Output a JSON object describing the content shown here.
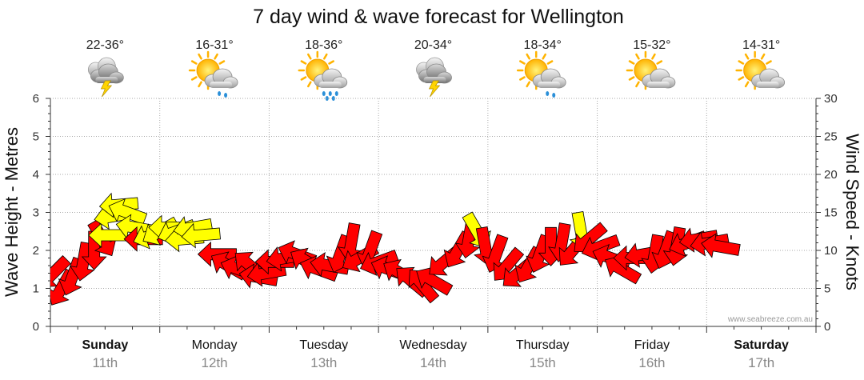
{
  "chart_data": {
    "type": "line",
    "title": "7 day wind & wave forecast for Wellington",
    "ylabel_left": "Wave Height - Metres",
    "ylabel_right": "Wind Speed - Knots",
    "ylim_left": [
      0,
      6
    ],
    "ylim_right": [
      0,
      30
    ],
    "yticks_left": [
      "0",
      "1",
      "2",
      "3",
      "4",
      "5",
      "6"
    ],
    "yticks_right": [
      "0",
      "5",
      "10",
      "15",
      "20",
      "25",
      "30"
    ],
    "grid": true,
    "credit": "www.seabreeze.com.au",
    "days": [
      {
        "day": "Sunday",
        "date": "11th",
        "bold": true,
        "temp": "22-36°",
        "icon": "cloud-storm-icon"
      },
      {
        "day": "Monday",
        "date": "12th",
        "bold": false,
        "temp": "16-31°",
        "icon": "sun-cloud-drizzle-icon"
      },
      {
        "day": "Tuesday",
        "date": "13th",
        "bold": false,
        "temp": "18-36°",
        "icon": "sun-cloud-rain-icon"
      },
      {
        "day": "Wednesday",
        "date": "14th",
        "bold": false,
        "temp": "20-34°",
        "icon": "cloud-storm-icon"
      },
      {
        "day": "Thursday",
        "date": "15th",
        "bold": false,
        "temp": "18-34°",
        "icon": "sun-cloud-drizzle-icon"
      },
      {
        "day": "Friday",
        "date": "16th",
        "bold": false,
        "temp": "15-32°",
        "icon": "sun-cloud-icon"
      },
      {
        "day": "Saturday",
        "date": "17th",
        "bold": true,
        "temp": "14-31°",
        "icon": "sun-cloud-icon"
      }
    ],
    "colors": {
      "high_wind": "#ff0000",
      "low_wind": "#ffff00",
      "outline": "#000000"
    },
    "series": [
      {
        "name": "Wind Speed - Knots",
        "points": [
          {
            "x": 0.05,
            "y": 7.0,
            "dir": 135,
            "c": "r"
          },
          {
            "x": 0.2,
            "y": 5.0,
            "dir": 120,
            "c": "r"
          },
          {
            "x": 0.4,
            "y": 6.5,
            "dir": 110,
            "c": "r"
          },
          {
            "x": 0.6,
            "y": 8.5,
            "dir": 100,
            "c": "r"
          },
          {
            "x": 0.8,
            "y": 10.0,
            "dir": 90,
            "c": "r"
          },
          {
            "x": 0.95,
            "y": 11.5,
            "dir": 60,
            "c": "r"
          },
          {
            "x": 1.05,
            "y": 12.0,
            "dir": 180,
            "c": "y"
          },
          {
            "x": 1.15,
            "y": 14.5,
            "dir": 170,
            "c": "y"
          },
          {
            "x": 1.25,
            "y": 16.0,
            "dir": 175,
            "c": "y"
          },
          {
            "x": 1.4,
            "y": 15.0,
            "dir": 200,
            "c": "y"
          },
          {
            "x": 1.55,
            "y": 13.0,
            "dir": 190,
            "c": "y"
          },
          {
            "x": 1.7,
            "y": 11.5,
            "dir": 180,
            "c": "r"
          },
          {
            "x": 1.85,
            "y": 12.0,
            "dir": 160,
            "c": "y"
          },
          {
            "x": 2.0,
            "y": 12.5,
            "dir": 150,
            "c": "y"
          },
          {
            "x": 2.15,
            "y": 13.0,
            "dir": 180,
            "c": "y"
          },
          {
            "x": 2.3,
            "y": 12.5,
            "dir": 160,
            "c": "y"
          },
          {
            "x": 2.45,
            "y": 11.5,
            "dir": 175,
            "c": "y"
          },
          {
            "x": 2.6,
            "y": 13.0,
            "dir": 170,
            "c": "y"
          },
          {
            "x": 2.75,
            "y": 12.0,
            "dir": 175,
            "c": "y"
          },
          {
            "x": 3.05,
            "y": 9.5,
            "dir": 180,
            "c": "r"
          },
          {
            "x": 3.25,
            "y": 8.0,
            "dir": 210,
            "c": "r"
          },
          {
            "x": 3.45,
            "y": 7.5,
            "dir": 200,
            "c": "r"
          },
          {
            "x": 3.65,
            "y": 8.0,
            "dir": 220,
            "c": "r"
          },
          {
            "x": 3.8,
            "y": 6.5,
            "dir": 190,
            "c": "r"
          },
          {
            "x": 3.95,
            "y": 7.0,
            "dir": 170,
            "c": "r"
          },
          {
            "x": 4.1,
            "y": 8.5,
            "dir": 180,
            "c": "r"
          },
          {
            "x": 4.3,
            "y": 9.0,
            "dir": 170,
            "c": "r"
          },
          {
            "x": 4.5,
            "y": 9.5,
            "dir": 200,
            "c": "r"
          },
          {
            "x": 4.7,
            "y": 8.5,
            "dir": 210,
            "c": "r"
          },
          {
            "x": 4.9,
            "y": 7.5,
            "dir": 200,
            "c": "r"
          },
          {
            "x": 5.1,
            "y": 8.0,
            "dir": 190,
            "c": "r"
          },
          {
            "x": 5.3,
            "y": 9.5,
            "dir": 110,
            "c": "r"
          },
          {
            "x": 5.5,
            "y": 11.0,
            "dir": 100,
            "c": "r"
          },
          {
            "x": 5.65,
            "y": 9.0,
            "dir": 150,
            "c": "r"
          },
          {
            "x": 5.85,
            "y": 10.0,
            "dir": 110,
            "c": "r"
          },
          {
            "x": 6.0,
            "y": 8.5,
            "dir": 160,
            "c": "r"
          },
          {
            "x": 6.2,
            "y": 7.5,
            "dir": 200,
            "c": "r"
          },
          {
            "x": 6.4,
            "y": 7.0,
            "dir": 210,
            "c": "r"
          },
          {
            "x": 6.6,
            "y": 6.0,
            "dir": 220,
            "c": "r"
          },
          {
            "x": 6.8,
            "y": 5.5,
            "dir": 230,
            "c": "r"
          },
          {
            "x": 7.0,
            "y": 6.0,
            "dir": 210,
            "c": "r"
          },
          {
            "x": 7.2,
            "y": 8.5,
            "dir": 140,
            "c": "r"
          },
          {
            "x": 7.45,
            "y": 10.0,
            "dir": 120,
            "c": "r"
          },
          {
            "x": 7.65,
            "y": 11.5,
            "dir": 100,
            "c": "r"
          },
          {
            "x": 7.8,
            "y": 12.5,
            "dir": 60,
            "c": "y"
          },
          {
            "x": 7.95,
            "y": 10.5,
            "dir": 80,
            "c": "r"
          },
          {
            "x": 8.15,
            "y": 9.5,
            "dir": 110,
            "c": "r"
          },
          {
            "x": 8.35,
            "y": 8.0,
            "dir": 130,
            "c": "r"
          },
          {
            "x": 8.55,
            "y": 7.0,
            "dir": 140,
            "c": "r"
          },
          {
            "x": 8.75,
            "y": 8.0,
            "dir": 120,
            "c": "r"
          },
          {
            "x": 8.95,
            "y": 9.5,
            "dir": 110,
            "c": "r"
          },
          {
            "x": 9.15,
            "y": 10.5,
            "dir": 90,
            "c": "r"
          },
          {
            "x": 9.35,
            "y": 11.0,
            "dir": 100,
            "c": "r"
          },
          {
            "x": 9.55,
            "y": 10.0,
            "dir": 130,
            "c": "r"
          },
          {
            "x": 9.7,
            "y": 12.5,
            "dir": 80,
            "c": "y"
          },
          {
            "x": 9.85,
            "y": 11.5,
            "dir": 140,
            "c": "r"
          },
          {
            "x": 10.05,
            "y": 10.5,
            "dir": 160,
            "c": "r"
          },
          {
            "x": 10.25,
            "y": 9.0,
            "dir": 200,
            "c": "r"
          },
          {
            "x": 10.45,
            "y": 7.5,
            "dir": 210,
            "c": "r"
          },
          {
            "x": 10.65,
            "y": 9.0,
            "dir": 180,
            "c": "r"
          },
          {
            "x": 10.85,
            "y": 9.5,
            "dir": 170,
            "c": "r"
          },
          {
            "x": 11.05,
            "y": 9.5,
            "dir": 100,
            "c": "r"
          },
          {
            "x": 11.25,
            "y": 10.0,
            "dir": 110,
            "c": "r"
          },
          {
            "x": 11.45,
            "y": 10.5,
            "dir": 100,
            "c": "r"
          },
          {
            "x": 11.65,
            "y": 11.0,
            "dir": 160,
            "c": "r"
          },
          {
            "x": 11.85,
            "y": 11.5,
            "dir": 170,
            "c": "r"
          },
          {
            "x": 12.05,
            "y": 11.0,
            "dir": 170,
            "c": "r"
          },
          {
            "x": 12.25,
            "y": 10.5,
            "dir": 190,
            "c": "r"
          }
        ]
      }
    ]
  }
}
